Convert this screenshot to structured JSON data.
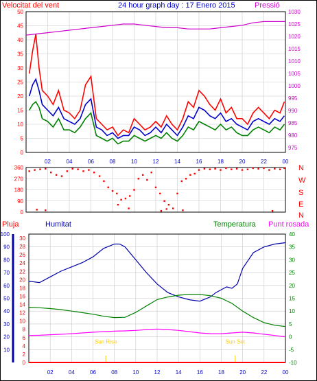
{
  "header": {
    "left_title": "Velocitat del vent",
    "center_title": "24 hour graph day : 17 Enero 2015",
    "right_title": "Pressió"
  },
  "lower_header": {
    "rain_label": "Pluja",
    "humidity_label": "Humitat",
    "temperature_label": "Temperatura",
    "dewpoint_label": "Punt rosada"
  },
  "direction_letters": [
    "N",
    "W",
    "S",
    "E",
    "N"
  ],
  "sun_labels": {
    "rise": "Sun Rise",
    "set": "Sun Set"
  },
  "colors": {
    "wind": "#ff0000",
    "pressure": "#cc00cc",
    "gust_avg": "#0000cc",
    "wind_avg": "#008000",
    "humidity": "#0000aa",
    "temperature": "#008000",
    "dewpoint": "#ff00ff",
    "rain": "#ff0000",
    "sun": "#ffcc00",
    "grid": "#c8c8c8"
  },
  "chart_data": [
    {
      "type": "line",
      "name": "wind-and-pressure",
      "x_ticks": [
        "02",
        "04",
        "06",
        "08",
        "10",
        "12",
        "14",
        "16",
        "18",
        "20",
        "22",
        "00"
      ],
      "xlim": [
        0,
        24
      ],
      "y_left_label": "Velocitat del vent",
      "y_left_ticks": [
        0,
        5,
        10,
        15,
        20,
        25,
        30,
        35,
        40,
        45,
        50
      ],
      "y_left_lim": [
        0,
        50
      ],
      "y_right_label": "Pressió",
      "y_right_ticks": [
        975,
        980,
        985,
        990,
        995,
        1000,
        1005,
        1010,
        1015,
        1020,
        1025,
        1030
      ],
      "y_right_lim": [
        973,
        1030
      ],
      "grid": true,
      "series": [
        {
          "name": "gust",
          "color": "#ff0000",
          "x": [
            0.3,
            0.6,
            0.9,
            1.2,
            1.5,
            2.0,
            2.5,
            3.0,
            3.5,
            4.0,
            4.5,
            5.0,
            5.5,
            6.0,
            6.5,
            7.0,
            7.5,
            8.0,
            8.5,
            9.0,
            9.5,
            10.0,
            10.5,
            11.0,
            11.5,
            12.0,
            12.5,
            13.0,
            13.5,
            14.0,
            14.5,
            15.0,
            15.5,
            16.0,
            16.5,
            17.0,
            17.5,
            18.0,
            18.5,
            19.0,
            19.5,
            20.0,
            20.5,
            21.0,
            21.5,
            22.0,
            22.5,
            23.0,
            23.5,
            23.9
          ],
          "y": [
            28,
            36,
            42,
            30,
            22,
            20,
            17,
            22,
            15,
            14,
            12,
            15,
            24,
            27,
            12,
            10,
            8,
            9,
            6,
            8,
            7,
            12,
            10,
            8,
            9,
            11,
            9,
            13,
            10,
            8,
            12,
            18,
            16,
            22,
            20,
            17,
            15,
            19,
            14,
            16,
            12,
            12,
            10,
            14,
            16,
            14,
            12,
            15,
            14,
            18
          ]
        },
        {
          "name": "wind-avg-high",
          "color": "#0000cc",
          "x": [
            0.3,
            0.6,
            0.9,
            1.2,
            1.5,
            2.0,
            2.5,
            3.0,
            3.5,
            4.0,
            4.5,
            5.0,
            5.5,
            6.0,
            6.5,
            7.0,
            7.5,
            8.0,
            8.5,
            9.0,
            9.5,
            10.0,
            10.5,
            11.0,
            11.5,
            12.0,
            12.5,
            13.0,
            13.5,
            14.0,
            14.5,
            15.0,
            15.5,
            16.0,
            16.5,
            17.0,
            17.5,
            18.0,
            18.5,
            19.0,
            19.5,
            20.0,
            20.5,
            21.0,
            21.5,
            22.0,
            22.5,
            23.0,
            23.5,
            23.9
          ],
          "y": [
            20,
            24,
            26,
            22,
            17,
            15,
            13,
            16,
            12,
            11,
            10,
            12,
            17,
            19,
            9,
            8,
            6,
            7,
            5,
            6,
            6,
            9,
            8,
            6,
            7,
            9,
            7,
            10,
            8,
            6,
            9,
            13,
            12,
            16,
            15,
            13,
            12,
            14,
            11,
            12,
            10,
            9,
            8,
            11,
            12,
            11,
            10,
            12,
            11,
            13
          ]
        },
        {
          "name": "wind-avg",
          "color": "#008000",
          "x": [
            0.3,
            0.6,
            0.9,
            1.2,
            1.5,
            2.0,
            2.5,
            3.0,
            3.5,
            4.0,
            4.5,
            5.0,
            5.5,
            6.0,
            6.5,
            7.0,
            7.5,
            8.0,
            8.5,
            9.0,
            9.5,
            10.0,
            10.5,
            11.0,
            11.5,
            12.0,
            12.5,
            13.0,
            13.5,
            14.0,
            14.5,
            15.0,
            15.5,
            16.0,
            16.5,
            17.0,
            17.5,
            18.0,
            18.5,
            19.0,
            19.5,
            20.0,
            20.5,
            21.0,
            21.5,
            22.0,
            22.5,
            23.0,
            23.5,
            23.9
          ],
          "y": [
            15,
            17,
            18,
            16,
            12,
            11,
            9,
            12,
            8,
            8,
            7,
            9,
            12,
            14,
            6,
            5,
            4,
            5,
            3,
            4,
            4,
            6,
            5,
            4,
            5,
            6,
            5,
            7,
            5,
            4,
            6,
            9,
            8,
            11,
            10,
            9,
            8,
            10,
            8,
            9,
            7,
            6,
            6,
            8,
            9,
            8,
            7,
            9,
            8,
            10
          ]
        },
        {
          "name": "pressure",
          "color": "#cc00cc",
          "axis": "right",
          "x": [
            0,
            1,
            2,
            3,
            4,
            5,
            6,
            7,
            8,
            9,
            10,
            11,
            12,
            13,
            14,
            15,
            16,
            17,
            18,
            19,
            20,
            21,
            22,
            23,
            24
          ],
          "y": [
            1020.5,
            1021,
            1021.5,
            1022,
            1022.5,
            1023,
            1023.5,
            1024,
            1024.5,
            1025,
            1025,
            1024.5,
            1024,
            1023.5,
            1023.5,
            1023,
            1023,
            1023,
            1023.5,
            1024,
            1024.5,
            1025.5,
            1026,
            1026,
            1026
          ]
        }
      ]
    },
    {
      "type": "scatter",
      "name": "wind-direction",
      "x_ticks": [
        "02",
        "04",
        "06",
        "08",
        "10",
        "12",
        "14",
        "16",
        "18",
        "20",
        "22",
        "00"
      ],
      "xlim": [
        0,
        24
      ],
      "y_ticks": [
        0,
        90,
        180,
        270,
        360
      ],
      "ylim": [
        0,
        360
      ],
      "color": "#ff0000",
      "x": [
        0.3,
        0.8,
        1.3,
        1.8,
        2.3,
        2.8,
        3.3,
        3.8,
        4.3,
        4.8,
        5.3,
        5.8,
        6.3,
        6.8,
        7.2,
        7.6,
        8.0,
        8.4,
        8.8,
        9.2,
        9.6,
        10.0,
        10.4,
        10.8,
        11.2,
        11.6,
        12.0,
        12.4,
        12.8,
        13.2,
        13.6,
        14.0,
        14.4,
        14.8,
        15.2,
        15.6,
        16.0,
        16.5,
        17.0,
        17.5,
        18.0,
        18.5,
        19.0,
        19.5,
        20.0,
        20.5,
        21.0,
        21.5,
        22.0,
        22.5,
        23.0,
        23.5,
        23.9,
        1.0,
        1.8,
        8.5,
        9.5,
        12.5,
        13.0,
        14.5,
        22.8
      ],
      "y": [
        330,
        340,
        345,
        350,
        320,
        300,
        290,
        330,
        350,
        345,
        330,
        340,
        320,
        290,
        250,
        200,
        170,
        150,
        100,
        110,
        130,
        180,
        270,
        300,
        260,
        320,
        200,
        150,
        90,
        60,
        30,
        150,
        250,
        270,
        300,
        310,
        340,
        350,
        345,
        350,
        340,
        355,
        345,
        350,
        340,
        345,
        355,
        350,
        355,
        340,
        350,
        345,
        355,
        20,
        15,
        60,
        30,
        10,
        25,
        15,
        10
      ]
    },
    {
      "type": "line",
      "name": "humidity-temperature-dewpoint-rain",
      "x_ticks": [
        "02",
        "04",
        "06",
        "08",
        "10",
        "12",
        "14",
        "16",
        "18",
        "20",
        "22",
        "00"
      ],
      "xlim": [
        0,
        24
      ],
      "y_humidity_ticks": [
        10,
        20,
        30,
        40,
        50,
        60,
        70,
        80,
        90,
        100
      ],
      "y_rain_ticks": [
        0,
        2,
        4,
        6,
        8,
        10,
        12,
        14,
        16,
        18,
        20,
        22,
        24,
        26,
        28,
        30
      ],
      "y_temp_ticks": [
        -10,
        -5,
        0,
        5,
        10,
        15,
        20,
        25,
        30,
        35,
        40
      ],
      "y_temp_lim": [
        -10,
        40
      ],
      "grid": true,
      "series": [
        {
          "name": "humidity",
          "color": "#0000aa",
          "axis": "humidity",
          "x": [
            0,
            1,
            2,
            3,
            4,
            5,
            6,
            7,
            8,
            8.5,
            9,
            10,
            11,
            12,
            13,
            14,
            15,
            16,
            17,
            17.5,
            18,
            18.5,
            19,
            19.5,
            20,
            21,
            22,
            23,
            24
          ],
          "y": [
            57,
            56,
            60,
            64,
            67,
            70,
            74,
            80,
            83,
            83,
            81,
            72,
            63,
            55,
            49,
            46,
            44,
            43,
            46,
            49,
            51,
            53,
            52,
            55,
            66,
            77,
            81,
            83,
            84
          ]
        },
        {
          "name": "temperature",
          "color": "#008000",
          "axis": "temp",
          "x": [
            0,
            1,
            2,
            3,
            4,
            5,
            6,
            7,
            8,
            9,
            10,
            11,
            12,
            13,
            14,
            15,
            16,
            17,
            18,
            19,
            20,
            21,
            22,
            23,
            24
          ],
          "y": [
            11.5,
            11.3,
            11,
            10.6,
            10,
            9.4,
            8.8,
            8,
            7.5,
            7.6,
            9.5,
            12,
            14.5,
            15.5,
            16.2,
            16.5,
            16.5,
            16,
            15,
            13,
            10,
            7.5,
            5.5,
            4.5,
            4
          ]
        },
        {
          "name": "dewpoint",
          "color": "#ff00ff",
          "axis": "temp",
          "x": [
            0,
            1,
            2,
            3,
            4,
            5,
            6,
            7,
            8,
            9,
            10,
            11,
            12,
            13,
            14,
            15,
            16,
            17,
            18,
            19,
            20,
            21,
            22,
            23,
            24
          ],
          "y": [
            0.5,
            0.6,
            0.8,
            1.0,
            1.2,
            1.5,
            1.8,
            2.0,
            2.2,
            2.3,
            2.5,
            2.8,
            3.0,
            2.8,
            2.5,
            2.0,
            1.5,
            1.2,
            1.2,
            1.5,
            1.8,
            1.5,
            1.0,
            0.5,
            0
          ]
        },
        {
          "name": "rain",
          "color": "#ff0000",
          "axis": "rain",
          "x": [
            0,
            24
          ],
          "y": [
            0,
            0
          ]
        }
      ],
      "sunrise_hour": 7.2,
      "sunset_hour": 19.3
    }
  ]
}
